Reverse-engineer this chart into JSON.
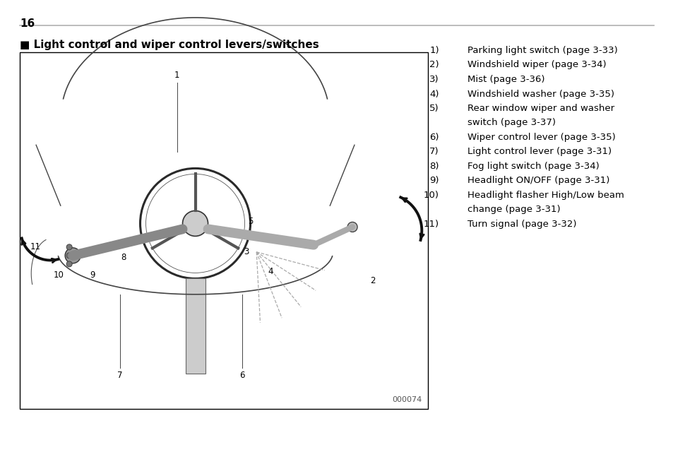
{
  "page_number": "16",
  "title": "■ Light control and wiper control levers/switches",
  "image_code": "000074",
  "list_items": [
    {
      "num": "1)",
      "text": "Parking light switch (page 3-33)"
    },
    {
      "num": "2)",
      "text": "Windshield wiper (page 3-34)"
    },
    {
      "num": "3)",
      "text": "Mist (page 3-36)"
    },
    {
      "num": "4)",
      "text": "Windshield washer (page 3-35)"
    },
    {
      "num": "5)",
      "text": "Rear window wiper and washer\nswitch (page 3-37)"
    },
    {
      "num": "6)",
      "text": "Wiper control lever (page 3-35)"
    },
    {
      "num": "7)",
      "text": "Light control lever (page 3-31)"
    },
    {
      "num": "8)",
      "text": "Fog light switch (page 3-34)"
    },
    {
      "num": "9)",
      "text": "Headlight ON/OFF (page 3-31)"
    },
    {
      "num": "10)",
      "text": "Headlight flasher High/Low beam\nchange (page 3-31)"
    },
    {
      "num": "11)",
      "text": "Turn signal (page 3-32)"
    }
  ],
  "bg_color": "#ffffff",
  "text_color": "#000000",
  "border_color": "#000000",
  "line_color": "#b0b0b0",
  "diagram_bg": "#ffffff",
  "font_size_page": 11,
  "font_size_title": 11,
  "font_size_list": 9.5,
  "font_size_image_code": 8
}
